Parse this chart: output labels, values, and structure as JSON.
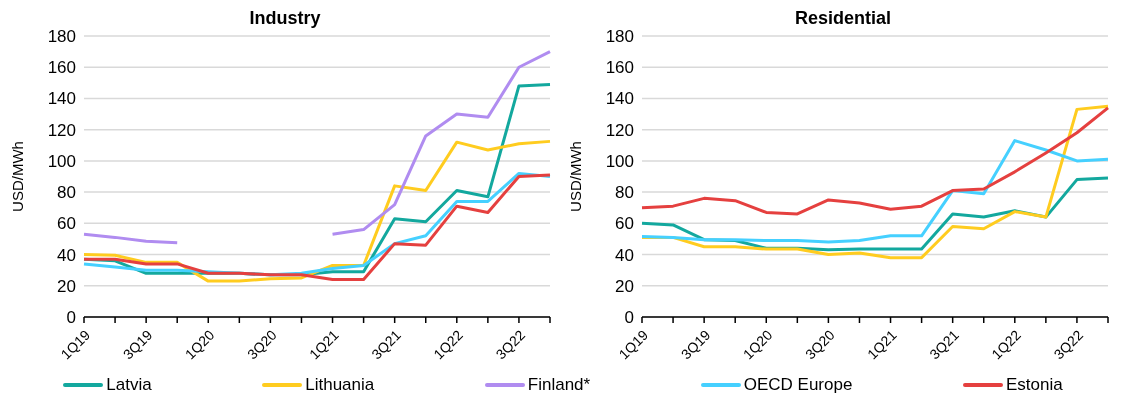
{
  "chart_data": [
    {
      "type": "line",
      "title": "Industry",
      "ylabel": "USD/MWh",
      "categories": [
        "1Q19",
        null,
        "3Q19",
        null,
        "1Q20",
        null,
        "3Q20",
        null,
        "1Q21",
        null,
        "3Q21",
        null,
        "1Q22",
        null,
        "3Q22",
        null
      ],
      "ylim": [
        0,
        180
      ],
      "yticks": [
        0,
        20,
        40,
        60,
        80,
        100,
        120,
        140,
        160,
        180
      ],
      "grid": "y",
      "legend": "bottom",
      "marker": "none",
      "line_style": "solid",
      "series": [
        {
          "name": "Latvia",
          "color": "#13a89e",
          "values": [
            37,
            36,
            28,
            28,
            28,
            28,
            27,
            27,
            29,
            29,
            63,
            61,
            81,
            77,
            148,
            149
          ]
        },
        {
          "name": "Lithuania",
          "color": "#ffcc1f",
          "values": [
            40,
            39.5,
            35,
            35,
            23,
            23,
            24.5,
            25,
            33,
            33,
            84,
            81,
            112,
            107,
            111,
            112.5
          ]
        },
        {
          "name": "Finland*",
          "color": "#b08cf0",
          "values": [
            53,
            51,
            48.5,
            47.5,
            null,
            null,
            null,
            null,
            53,
            56,
            72,
            116,
            130,
            128,
            160,
            170
          ]
        },
        {
          "name": "OECD Europe",
          "color": "#45d0ff",
          "values": [
            34,
            32,
            30,
            30,
            29,
            28,
            27,
            28,
            31,
            33,
            47,
            52,
            74,
            74,
            92,
            90
          ]
        },
        {
          "name": "Estonia",
          "color": "#e5403f",
          "values": [
            37,
            37,
            34,
            34,
            28,
            28,
            27,
            27,
            24,
            24,
            47,
            46,
            71,
            67,
            90,
            91
          ]
        }
      ]
    },
    {
      "type": "line",
      "title": "Residential",
      "ylabel": "USD/MWh",
      "categories": [
        "1Q19",
        null,
        "3Q19",
        null,
        "1Q20",
        null,
        "3Q20",
        null,
        "1Q21",
        null,
        "3Q21",
        null,
        "1Q22",
        null,
        "3Q22",
        null
      ],
      "ylim": [
        0,
        180
      ],
      "yticks": [
        0,
        20,
        40,
        60,
        80,
        100,
        120,
        140,
        160,
        180
      ],
      "grid": "y",
      "legend": "bottom",
      "marker": "none",
      "line_style": "solid",
      "series": [
        {
          "name": "Latvia",
          "color": "#13a89e",
          "values": [
            60,
            59,
            49.5,
            49,
            44,
            44,
            43,
            43.5,
            43.5,
            43.5,
            66,
            64,
            68,
            64,
            88,
            89
          ]
        },
        {
          "name": "Lithuania",
          "color": "#ffcc1f",
          "values": [
            51,
            51,
            45,
            45,
            43.5,
            43.5,
            40,
            41,
            38,
            38,
            58,
            56.5,
            67.5,
            64,
            133,
            135
          ]
        },
        {
          "name": "OECD Europe",
          "color": "#45d0ff",
          "values": [
            51.5,
            51,
            49.5,
            49.5,
            49,
            49,
            48,
            49,
            52,
            52,
            81,
            79,
            113,
            107,
            100,
            101
          ]
        },
        {
          "name": "Estonia",
          "color": "#e5403f",
          "values": [
            70,
            71,
            76,
            74.5,
            67,
            66,
            75,
            73,
            69,
            71,
            81,
            82,
            93,
            105,
            118,
            134
          ]
        }
      ]
    }
  ]
}
